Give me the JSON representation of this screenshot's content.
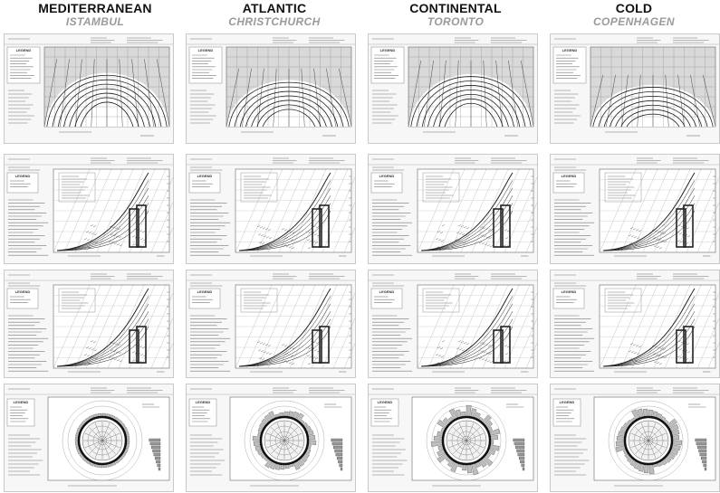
{
  "columns": [
    {
      "climate": "MEDITERRANEAN",
      "city": "ISTAMBUL"
    },
    {
      "climate": "ATLANTIC",
      "city": "CHRISTCHURCH"
    },
    {
      "climate": "CONTINENTAL",
      "city": "TORONTO"
    },
    {
      "climate": "COLD",
      "city": "COPENHAGEN"
    }
  ],
  "rows": [
    {
      "name": "sun-path-chart",
      "legend_title": "LEGEND"
    },
    {
      "name": "psychrometric-chart-1",
      "legend_title": "LEGEND"
    },
    {
      "name": "psychrometric-chart-2",
      "legend_title": "LEGEND"
    },
    {
      "name": "wind-rose-chart",
      "legend_title": "LEGEND"
    }
  ],
  "colors": {
    "ink": "#222222",
    "panel_bg": "#f7f7f7",
    "plot_bg": "#d9d9d9",
    "city_gray": "#9a9a9a"
  }
}
